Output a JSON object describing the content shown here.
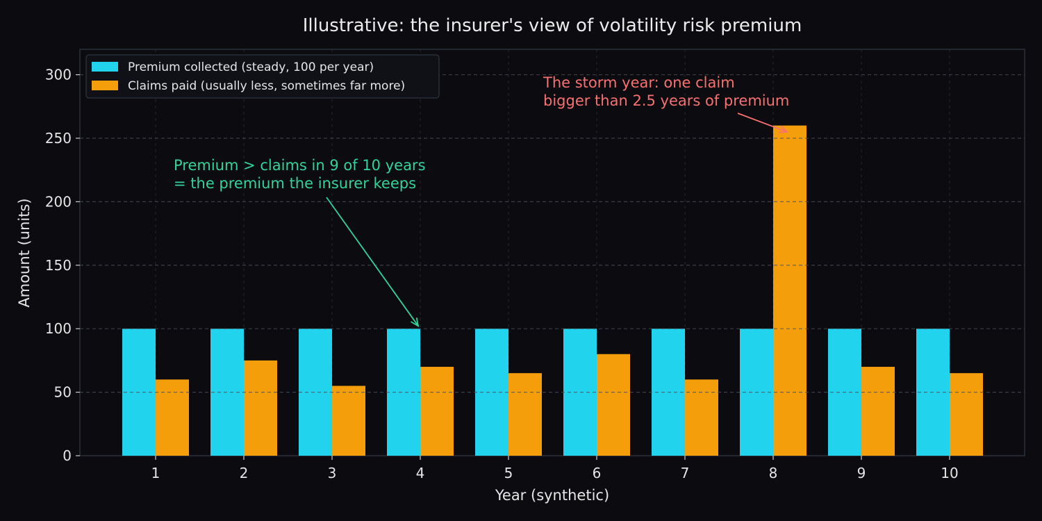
{
  "chart_data": {
    "type": "bar",
    "title": "Illustrative: the insurer's view of volatility risk premium",
    "xlabel": "Year (synthetic)",
    "ylabel": "Amount (units)",
    "categories": [
      "1",
      "2",
      "3",
      "4",
      "5",
      "6",
      "7",
      "8",
      "9",
      "10"
    ],
    "series": [
      {
        "name": "Premium collected (steady, 100 per year)",
        "values": [
          100,
          100,
          100,
          100,
          100,
          100,
          100,
          100,
          100,
          100
        ],
        "color": "#22d3ee"
      },
      {
        "name": "Claims paid (usually less, sometimes far more)",
        "values": [
          60,
          75,
          55,
          70,
          65,
          80,
          60,
          260,
          70,
          65
        ],
        "color": "#f59e0b"
      }
    ],
    "ylim": [
      0,
      320
    ],
    "yticks": [
      0,
      50,
      100,
      150,
      200,
      250,
      300
    ],
    "grid": true,
    "legend_position": "top-left",
    "annotations": [
      {
        "lines": [
          "Premium > claims in 9 of 10 years",
          "= the premium the insurer keeps"
        ],
        "color": "#34d399",
        "target_category": "4",
        "target_value": 100
      },
      {
        "lines": [
          "The storm year: one claim",
          "bigger than 2.5 years of premium"
        ],
        "color": "#f87171",
        "target_category": "8",
        "target_value": 255
      }
    ]
  }
}
